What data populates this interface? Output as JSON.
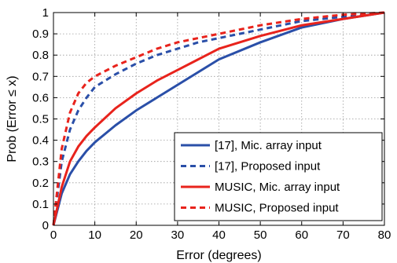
{
  "chart_data": {
    "type": "line",
    "xlabel": "Error (degrees)",
    "ylabel": "Prob (Error ≤ x)",
    "xlim": [
      0,
      80
    ],
    "ylim": [
      0,
      1
    ],
    "xticks": [
      "0",
      "10",
      "20",
      "30",
      "40",
      "50",
      "60",
      "70",
      "80"
    ],
    "yticks": [
      "0",
      "0.1",
      "0.2",
      "0.3",
      "0.4",
      "0.5",
      "0.6",
      "0.7",
      "0.8",
      "0.9",
      "1"
    ],
    "grid": true,
    "legend_position": "bottom-right",
    "series": [
      {
        "name": "[17], Mic. array input",
        "color": "#2a4fa8",
        "dash": "solid",
        "x": [
          0,
          2,
          4,
          6,
          8,
          10,
          15,
          20,
          25,
          30,
          35,
          40,
          50,
          60,
          70,
          80
        ],
        "y": [
          0,
          0.15,
          0.24,
          0.3,
          0.35,
          0.39,
          0.47,
          0.54,
          0.6,
          0.66,
          0.72,
          0.78,
          0.86,
          0.93,
          0.97,
          1.0
        ]
      },
      {
        "name": "[17], Proposed input",
        "color": "#2a4fa8",
        "dash": "dashed",
        "x": [
          0,
          2,
          4,
          6,
          8,
          10,
          15,
          20,
          25,
          30,
          35,
          40,
          50,
          60,
          70,
          80
        ],
        "y": [
          0,
          0.3,
          0.45,
          0.54,
          0.6,
          0.65,
          0.71,
          0.76,
          0.8,
          0.83,
          0.86,
          0.88,
          0.92,
          0.96,
          0.98,
          1.0
        ]
      },
      {
        "name": "MUSIC, Mic. array input",
        "color": "#e8231c",
        "dash": "solid",
        "x": [
          0,
          2,
          4,
          6,
          8,
          10,
          15,
          20,
          25,
          30,
          35,
          40,
          50,
          60,
          70,
          80
        ],
        "y": [
          0,
          0.18,
          0.3,
          0.37,
          0.42,
          0.46,
          0.55,
          0.62,
          0.68,
          0.73,
          0.78,
          0.83,
          0.89,
          0.94,
          0.97,
          1.0
        ]
      },
      {
        "name": "MUSIC, Proposed input",
        "color": "#e8231c",
        "dash": "dashed",
        "x": [
          0,
          2,
          4,
          6,
          8,
          10,
          15,
          20,
          25,
          30,
          35,
          40,
          50,
          60,
          70,
          80
        ],
        "y": [
          0,
          0.36,
          0.53,
          0.62,
          0.67,
          0.7,
          0.75,
          0.79,
          0.83,
          0.86,
          0.88,
          0.9,
          0.94,
          0.97,
          0.99,
          1.0
        ]
      }
    ]
  }
}
